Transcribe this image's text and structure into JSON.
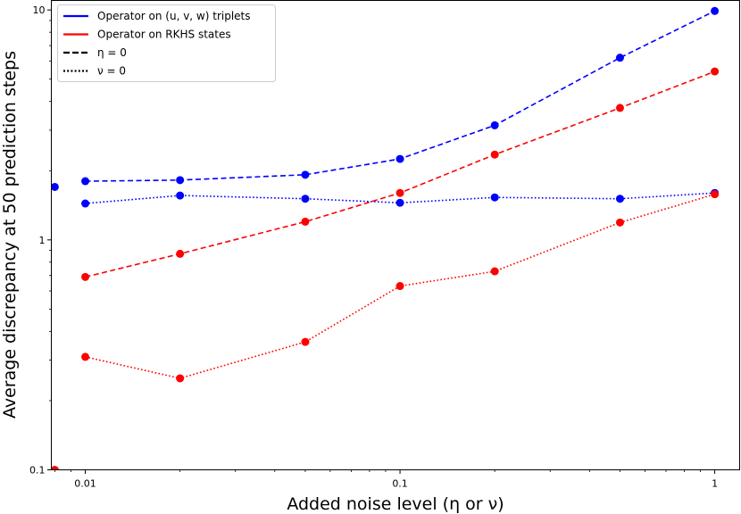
{
  "chart_data": {
    "type": "line",
    "xscale": "log",
    "yscale": "log",
    "xlim": [
      0.0078,
      1.2
    ],
    "ylim": [
      0.1,
      11
    ],
    "xticks": [
      {
        "value": 0.01,
        "label": "0.01"
      },
      {
        "value": 0.1,
        "label": "0.1"
      },
      {
        "value": 1,
        "label": "1"
      }
    ],
    "yticks": [
      {
        "value": 0.1,
        "label": "0.1"
      },
      {
        "value": 1,
        "label": "1"
      },
      {
        "value": 10,
        "label": "10"
      }
    ],
    "xlabel": "Added noise level (η or ν)",
    "ylabel": "Average discrepancy at 50 prediction steps",
    "grid": false,
    "legend_position": "top-left",
    "legend": [
      {
        "label": "Operator on (u, v, w) triplets",
        "color": "#0000ff",
        "style": "solid"
      },
      {
        "label": "Operator on RKHS states",
        "color": "#ff0000",
        "style": "solid"
      },
      {
        "label": "η = 0",
        "color": "#000000",
        "style": "dashed"
      },
      {
        "label": "ν = 0",
        "color": "#000000",
        "style": "dotted"
      }
    ],
    "series": [
      {
        "id": "triplets-eta0",
        "color": "#0000ff",
        "style": "dashed",
        "x": [
          0.01,
          0.02,
          0.05,
          0.1,
          0.2,
          0.5,
          1
        ],
        "y": [
          1.8,
          1.82,
          1.92,
          2.25,
          3.15,
          6.2,
          9.9
        ]
      },
      {
        "id": "triplets-nu0",
        "color": "#0000ff",
        "style": "dotted",
        "x": [
          0.01,
          0.02,
          0.05,
          0.1,
          0.2,
          0.5,
          1
        ],
        "y": [
          1.44,
          1.56,
          1.51,
          1.45,
          1.53,
          1.51,
          1.6
        ]
      },
      {
        "id": "rkhs-eta0",
        "color": "#ff0000",
        "style": "dashed",
        "x": [
          0.01,
          0.02,
          0.05,
          0.1,
          0.2,
          0.5,
          1
        ],
        "y": [
          0.69,
          0.87,
          1.2,
          1.6,
          2.35,
          3.75,
          5.4
        ]
      },
      {
        "id": "rkhs-nu0",
        "color": "#ff0000",
        "style": "dotted",
        "x": [
          0.01,
          0.02,
          0.05,
          0.1,
          0.2,
          0.5,
          1
        ],
        "y": [
          0.31,
          0.25,
          0.36,
          0.63,
          0.73,
          1.19,
          1.58
        ]
      }
    ],
    "extra_points": [
      {
        "x": 0.008,
        "y": 1.7,
        "color": "#0000ff"
      },
      {
        "x": 0.008,
        "y": 0.1,
        "color": "#ff0000"
      }
    ]
  }
}
